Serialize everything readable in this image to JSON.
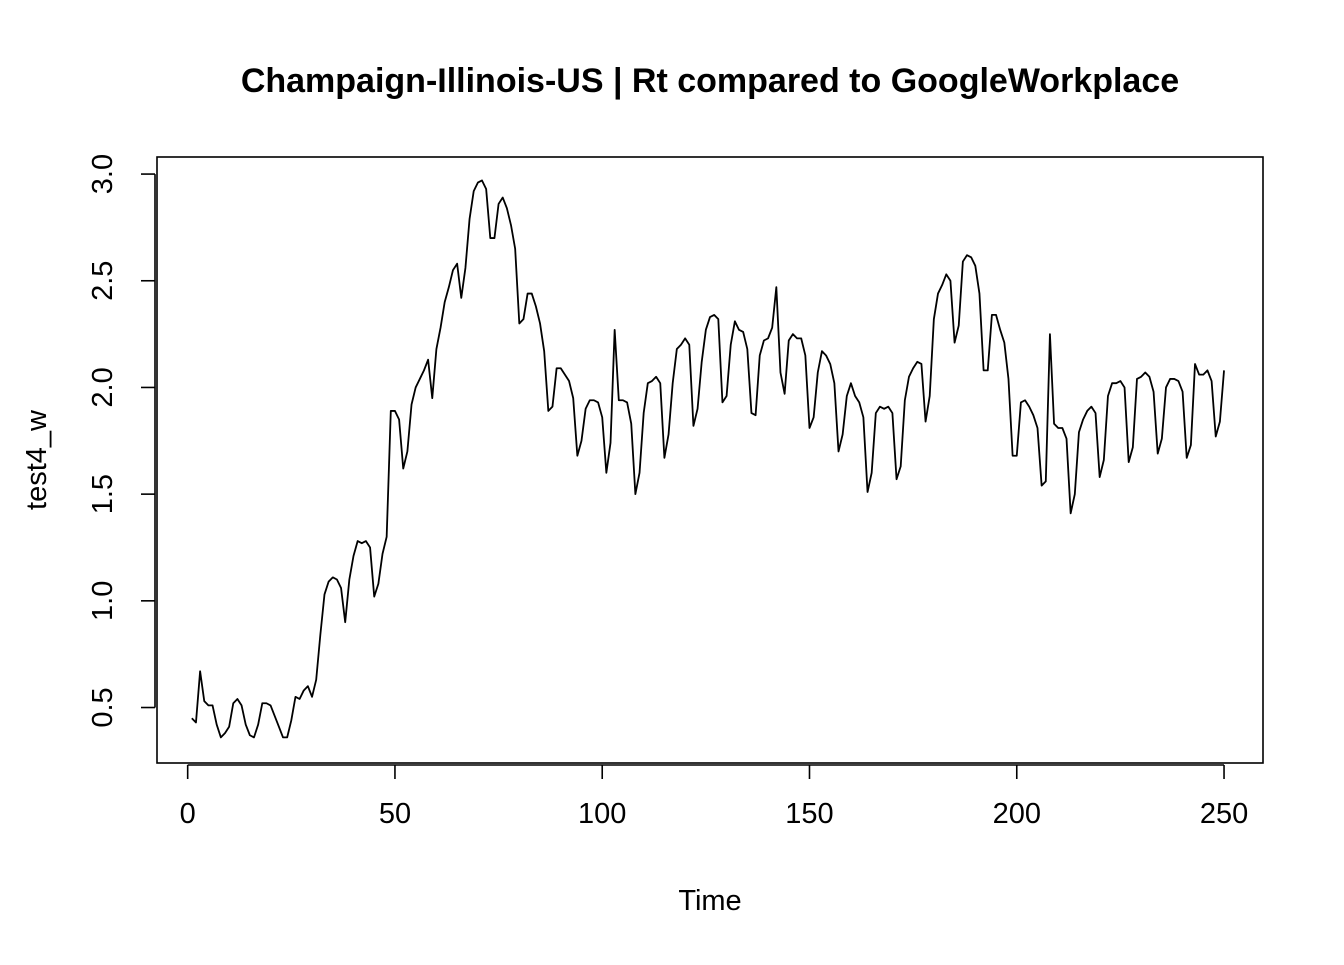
{
  "chart_data": {
    "type": "line",
    "title": "Champaign-Illinois-US | Rt compared to GoogleWorkplace",
    "xlabel": "Time",
    "ylabel": "test4_w",
    "xlim": [
      -7.4,
      259.4
    ],
    "ylim": [
      0.24,
      3.08
    ],
    "x_ticks": [
      0,
      50,
      100,
      150,
      200,
      250
    ],
    "y_ticks": [
      0.5,
      1.0,
      1.5,
      2.0,
      2.5,
      3.0
    ],
    "x_tick_labels": [
      "0",
      "50",
      "100",
      "150",
      "200",
      "250"
    ],
    "y_tick_labels": [
      "0.5",
      "1.0",
      "1.5",
      "2.0",
      "2.5",
      "3.0"
    ],
    "grid": false,
    "line_color": "#000000",
    "series": [
      {
        "x_start": 1,
        "x_step": 1,
        "values": [
          0.45,
          0.43,
          0.67,
          0.53,
          0.51,
          0.51,
          0.42,
          0.36,
          0.38,
          0.41,
          0.52,
          0.54,
          0.51,
          0.42,
          0.37,
          0.36,
          0.42,
          0.52,
          0.52,
          0.51,
          0.46,
          0.41,
          0.36,
          0.36,
          0.44,
          0.55,
          0.54,
          0.58,
          0.6,
          0.55,
          0.63,
          0.84,
          1.03,
          1.09,
          1.11,
          1.1,
          1.06,
          0.9,
          1.1,
          1.21,
          1.28,
          1.27,
          1.28,
          1.25,
          1.02,
          1.08,
          1.22,
          1.3,
          1.89,
          1.89,
          1.85,
          1.62,
          1.7,
          1.92,
          2.0,
          2.04,
          2.08,
          2.13,
          1.95,
          2.18,
          2.28,
          2.4,
          2.47,
          2.55,
          2.58,
          2.42,
          2.56,
          2.79,
          2.92,
          2.96,
          2.97,
          2.93,
          2.7,
          2.7,
          2.86,
          2.89,
          2.84,
          2.76,
          2.65,
          2.3,
          2.32,
          2.44,
          2.44,
          2.38,
          2.3,
          2.17,
          1.89,
          1.91,
          2.09,
          2.09,
          2.06,
          2.03,
          1.95,
          1.68,
          1.75,
          1.9,
          1.94,
          1.94,
          1.93,
          1.86,
          1.6,
          1.74,
          2.27,
          1.94,
          1.94,
          1.93,
          1.83,
          1.5,
          1.6,
          1.88,
          2.02,
          2.03,
          2.05,
          2.02,
          1.67,
          1.78,
          2.02,
          2.18,
          2.2,
          2.23,
          2.2,
          1.82,
          1.9,
          2.12,
          2.27,
          2.33,
          2.34,
          2.32,
          1.93,
          1.96,
          2.2,
          2.31,
          2.27,
          2.26,
          2.18,
          1.88,
          1.87,
          2.15,
          2.22,
          2.23,
          2.28,
          2.47,
          2.07,
          1.97,
          2.22,
          2.25,
          2.23,
          2.23,
          2.15,
          1.81,
          1.86,
          2.07,
          2.17,
          2.15,
          2.11,
          2.02,
          1.7,
          1.78,
          1.96,
          2.02,
          1.96,
          1.93,
          1.86,
          1.51,
          1.6,
          1.88,
          1.91,
          1.9,
          1.91,
          1.88,
          1.57,
          1.63,
          1.94,
          2.05,
          2.09,
          2.12,
          2.11,
          1.84,
          1.96,
          2.32,
          2.44,
          2.48,
          2.53,
          2.5,
          2.21,
          2.29,
          2.59,
          2.62,
          2.61,
          2.57,
          2.44,
          2.08,
          2.08,
          2.34,
          2.34,
          2.27,
          2.21,
          2.04,
          1.68,
          1.68,
          1.93,
          1.94,
          1.91,
          1.87,
          1.81,
          1.54,
          1.56,
          2.25,
          1.83,
          1.81,
          1.81,
          1.76,
          1.41,
          1.5,
          1.79,
          1.85,
          1.89,
          1.91,
          1.88,
          1.58,
          1.66,
          1.96,
          2.02,
          2.02,
          2.03,
          2.0,
          1.65,
          1.72,
          2.04,
          2.05,
          2.07,
          2.05,
          1.98,
          1.69,
          1.76,
          2.0,
          2.04,
          2.04,
          2.03,
          1.98,
          1.67,
          1.73,
          2.11,
          2.06,
          2.06,
          2.08,
          2.03,
          1.77,
          1.84,
          2.08
        ]
      }
    ]
  }
}
